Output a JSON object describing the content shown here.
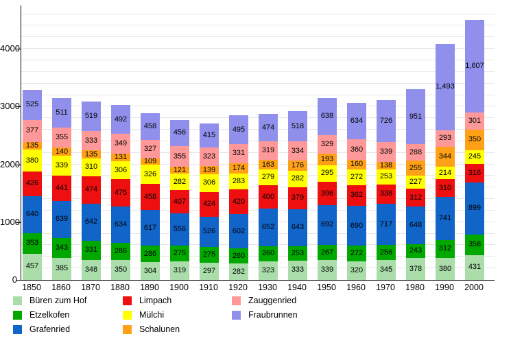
{
  "chart_data": {
    "type": "bar",
    "stacked": true,
    "title": "",
    "xlabel": "",
    "ylabel": "",
    "categories": [
      "1850",
      "1860",
      "1870",
      "1880",
      "1890",
      "1900",
      "1910",
      "1920",
      "1930",
      "1940",
      "1950",
      "1960",
      "1970",
      "1980",
      "1990",
      "2000"
    ],
    "series": [
      {
        "name": "Büren zum Hof",
        "color": "#AADDAA",
        "values": [
          457,
          385,
          348,
          350,
          304,
          319,
          297,
          282,
          323,
          333,
          339,
          320,
          345,
          378,
          380,
          431
        ]
      },
      {
        "name": "Etzelkofen",
        "color": "#00A800",
        "values": [
          353,
          343,
          331,
          286,
          286,
          275,
          275,
          260,
          260,
          253,
          267,
          272,
          256,
          243,
          312,
          358
        ]
      },
      {
        "name": "Grafenried",
        "color": "#1164C8",
        "values": [
          640,
          639,
          642,
          634,
          617,
          556,
          526,
          602,
          652,
          643,
          692,
          690,
          717,
          648,
          741,
          899
        ]
      },
      {
        "name": "Limpach",
        "color": "#EE1010",
        "values": [
          426,
          441,
          474,
          475,
          458,
          407,
          424,
          420,
          400,
          379,
          396,
          362,
          338,
          312,
          310,
          316
        ]
      },
      {
        "name": "Mülchi",
        "color": "#FFFF00",
        "values": [
          380,
          339,
          310,
          306,
          326,
          282,
          306,
          283,
          279,
          282,
          295,
          272,
          253,
          227,
          214,
          245
        ]
      },
      {
        "name": "Schalunen",
        "color": "#FFA117",
        "values": [
          135,
          140,
          135,
          131,
          109,
          121,
          139,
          174,
          163,
          176,
          193,
          160,
          138,
          255,
          344,
          350
        ]
      },
      {
        "name": "Zauggenried",
        "color": "#FF9999",
        "values": [
          377,
          355,
          333,
          349,
          327,
          355,
          323,
          331,
          319,
          334,
          329,
          360,
          339,
          288,
          293,
          301
        ]
      },
      {
        "name": "Fraubrunnen",
        "color": "#9090EC",
        "values": [
          525,
          511,
          519,
          492,
          458,
          456,
          415,
          495,
          474,
          518,
          638,
          634,
          726,
          951,
          1493,
          1607
        ]
      }
    ],
    "ylim": [
      0,
      4750
    ],
    "yticks": [
      0,
      1000,
      2000,
      3000,
      4000
    ],
    "grid_step": 200,
    "grid": true,
    "legend_position": "bottom"
  },
  "legend": {
    "columns": [
      {
        "items": [
          {
            "label": "Büren zum Hof",
            "color": "#AADDAA"
          },
          {
            "label": "Etzelkofen",
            "color": "#00A800"
          },
          {
            "label": "Grafenried",
            "color": "#1164C8"
          }
        ]
      },
      {
        "items": [
          {
            "label": "Limpach",
            "color": "#EE1010"
          },
          {
            "label": "Mülchi",
            "color": "#FFFF00"
          },
          {
            "label": "Schalunen",
            "color": "#FFA117"
          }
        ]
      },
      {
        "items": [
          {
            "label": "Zauggenried",
            "color": "#FF9999"
          },
          {
            "label": "Fraubrunnen",
            "color": "#9090EC"
          }
        ]
      }
    ]
  }
}
